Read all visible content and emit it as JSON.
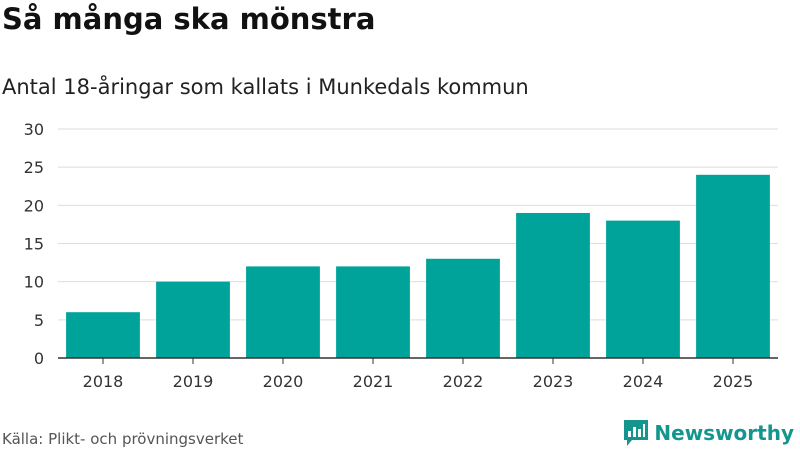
{
  "header": {
    "title": "Så många ska mönstra",
    "subtitle": "Antal 18-åringar som kallats i Munkedals kommun"
  },
  "footer": {
    "source": "Källa: Plikt- och prövningsverket",
    "brand": "Newsworthy"
  },
  "colors": {
    "bar": "#00a39a",
    "brand": "#14968e",
    "grid": "#dddddd",
    "axis": "#333333"
  },
  "chart_data": {
    "type": "bar",
    "title": "Så många ska mönstra",
    "subtitle": "Antal 18-åringar som kallats i Munkedals kommun",
    "xlabel": "",
    "ylabel": "",
    "categories": [
      "2018",
      "2019",
      "2020",
      "2021",
      "2022",
      "2023",
      "2024",
      "2025"
    ],
    "values": [
      6,
      10,
      12,
      12,
      13,
      19,
      18,
      24
    ],
    "ylim": [
      0,
      30
    ],
    "yticks": [
      0,
      5,
      10,
      15,
      20,
      25,
      30
    ],
    "grid": true
  }
}
